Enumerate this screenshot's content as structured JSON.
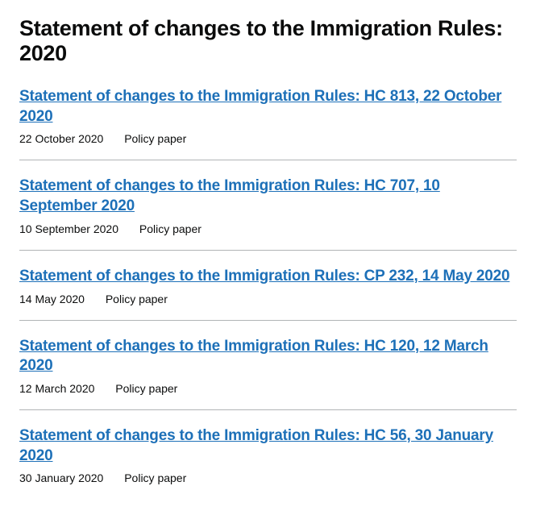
{
  "page": {
    "title": "Statement of changes to the Immigration Rules: 2020"
  },
  "colors": {
    "link": "#1d70b8",
    "text": "#0b0c0c",
    "border": "#b1b4b6",
    "background": "#ffffff"
  },
  "documents": [
    {
      "title": "Statement of changes to the Immigration Rules: HC 813, 22 October 2020",
      "date": "22 October 2020",
      "type": "Policy paper"
    },
    {
      "title": "Statement of changes to the Immigration Rules: HC 707, 10 September 2020",
      "date": "10 September 2020",
      "type": "Policy paper"
    },
    {
      "title": "Statement of changes to the Immigration Rules: CP 232, 14 May 2020",
      "date": "14 May 2020",
      "type": "Policy paper"
    },
    {
      "title": "Statement of changes to the Immigration Rules: HC 120, 12 March 2020",
      "date": "12 March 2020",
      "type": "Policy paper"
    },
    {
      "title": "Statement of changes to the Immigration Rules: HC 56, 30 January 2020",
      "date": "30 January 2020",
      "type": "Policy paper"
    }
  ]
}
